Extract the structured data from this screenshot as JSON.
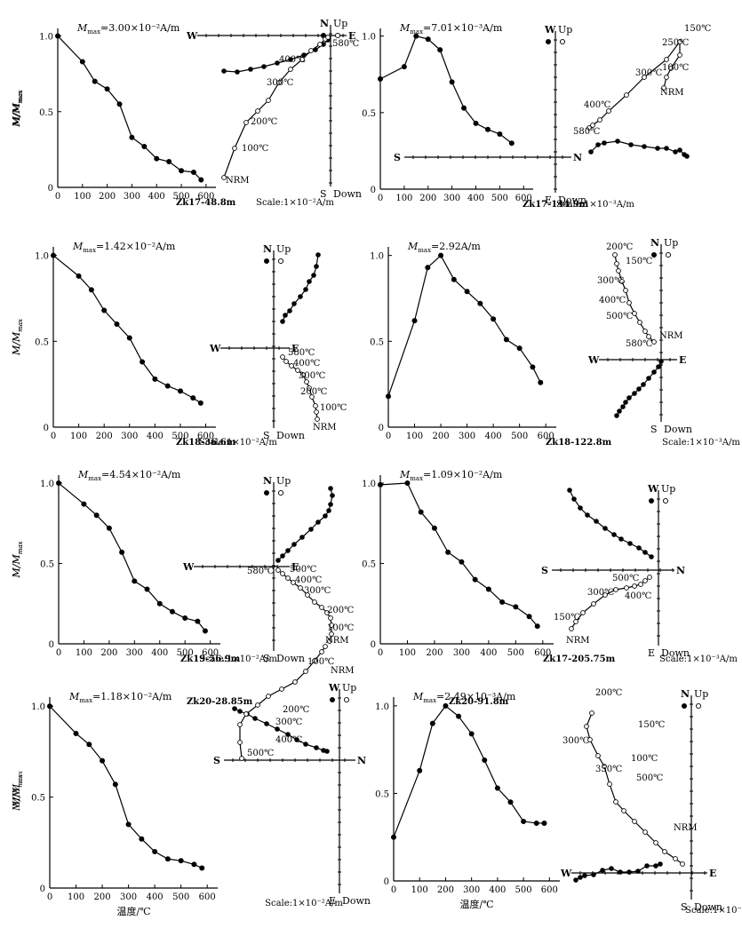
{
  "figure": {
    "ylabel": "M/M max",
    "ylabel_main": "M/M",
    "ylabel_sub": "max",
    "xlabel": "温度/℃"
  },
  "chart_data": [
    {
      "type": "line",
      "sample": "Zk17-48.8m",
      "mmax": "=3.00×10⁻²A/m",
      "x": [
        0,
        100,
        150,
        200,
        250,
        300,
        350,
        400,
        450,
        500,
        550,
        580
      ],
      "y": [
        1.0,
        0.83,
        0.7,
        0.65,
        0.55,
        0.33,
        0.27,
        0.19,
        0.17,
        0.11,
        0.1,
        0.05
      ],
      "xlim": [
        0,
        640
      ],
      "ylim": [
        0,
        1.05
      ],
      "xticks": [
        "0",
        "100",
        "200",
        "300",
        "400",
        "500",
        "600"
      ],
      "yticks": [
        "0",
        "0.5",
        "1.0"
      ],
      "zij": {
        "axes": {
          "top": "N",
          "top2": "Up",
          "left": "W",
          "right": "E",
          "bottom": "S",
          "bottom2": "Down"
        },
        "scale": "Scale:1×10⁻²A/m",
        "steps": [
          "NRM",
          "100℃",
          "200℃",
          "300℃",
          "400℃",
          "580℃"
        ]
      }
    },
    {
      "type": "line",
      "sample": "Zk17-144.9m",
      "mmax": "=7.01×10⁻³A/m",
      "x": [
        0,
        100,
        150,
        200,
        250,
        300,
        350,
        400,
        450,
        500,
        550
      ],
      "y": [
        0.72,
        0.8,
        1.0,
        0.98,
        0.91,
        0.7,
        0.53,
        0.43,
        0.39,
        0.36,
        0.3
      ],
      "xlim": [
        0,
        640
      ],
      "ylim": [
        0,
        1.05
      ],
      "xticks": [
        "0",
        "100",
        "200",
        "300",
        "400",
        "500",
        "600"
      ],
      "yticks": [
        "0",
        "0.5",
        "1.0"
      ],
      "zij": {
        "axes": {
          "top": "W",
          "top2": "Up",
          "left": "S",
          "right": "N",
          "bottom": "E",
          "bottom2": "Down"
        },
        "scale": "Scale:1×10⁻³A/m",
        "steps": [
          "150℃",
          "250℃",
          "100℃",
          "300℃",
          "NRM",
          "400℃",
          "580℃"
        ]
      }
    },
    {
      "type": "line",
      "sample": "Zk18-36.6m",
      "mmax": "=1.42×10⁻²A/m",
      "x": [
        0,
        100,
        150,
        200,
        250,
        300,
        350,
        400,
        450,
        500,
        550,
        580
      ],
      "y": [
        1.0,
        0.88,
        0.8,
        0.68,
        0.6,
        0.52,
        0.38,
        0.28,
        0.24,
        0.21,
        0.17,
        0.14
      ],
      "xlim": [
        0,
        640
      ],
      "ylim": [
        0,
        1.05
      ],
      "xticks": [
        "0",
        "100",
        "200",
        "300",
        "400",
        "500",
        "600"
      ],
      "yticks": [
        "0",
        "0.5",
        "1.0"
      ],
      "zij": {
        "axes": {
          "top": "N",
          "top2": "Up",
          "left": "W",
          "right": "E",
          "bottom": "S",
          "bottom2": "Down"
        },
        "scale": "Scale:1×10⁻²A/m",
        "steps": [
          "580℃",
          "400℃",
          "300℃",
          "200℃",
          "100℃",
          "NRM"
        ]
      }
    },
    {
      "type": "line",
      "sample": "Zk18-122.8m",
      "mmax": "=2.92A/m",
      "x": [
        0,
        100,
        150,
        200,
        250,
        300,
        350,
        400,
        450,
        500,
        550,
        580
      ],
      "y": [
        0.18,
        0.62,
        0.93,
        1.0,
        0.86,
        0.79,
        0.72,
        0.63,
        0.51,
        0.46,
        0.35,
        0.26
      ],
      "xlim": [
        0,
        640
      ],
      "ylim": [
        0,
        1.05
      ],
      "xticks": [
        "0",
        "100",
        "200",
        "300",
        "400",
        "500",
        "600"
      ],
      "yticks": [
        "0",
        "0.5",
        "1.0"
      ],
      "zij": {
        "axes": {
          "top": "N",
          "top2": "Up",
          "left": "W",
          "right": "E",
          "bottom": "S",
          "bottom2": "Down"
        },
        "scale": "Scale:1×10⁻³A/m",
        "steps": [
          "200℃",
          "150℃",
          "300℃",
          "400℃",
          "500℃",
          "NRM",
          "580℃"
        ]
      }
    },
    {
      "type": "line",
      "sample": "Zk19-56.9m",
      "mmax": "=4.54×10⁻²A/m",
      "x": [
        0,
        100,
        150,
        200,
        250,
        300,
        350,
        400,
        450,
        500,
        550,
        580
      ],
      "y": [
        1.0,
        0.87,
        0.8,
        0.72,
        0.57,
        0.39,
        0.34,
        0.25,
        0.2,
        0.16,
        0.14,
        0.08
      ],
      "xlim": [
        0,
        640
      ],
      "ylim": [
        0,
        1.05
      ],
      "xticks": [
        "0",
        "100",
        "200",
        "300",
        "400",
        "500",
        "600"
      ],
      "yticks": [
        "0",
        "0.5",
        "1.0"
      ],
      "zij": {
        "axes": {
          "top": "N",
          "top2": "Up",
          "left": "W",
          "right": "E",
          "bottom": "S",
          "bottom2": "Down"
        },
        "scale": "Scale:1×10⁻²A/m",
        "steps": [
          "580℃",
          "500℃",
          "400℃",
          "300℃",
          "200℃",
          "100℃",
          "NRM"
        ]
      }
    },
    {
      "type": "line",
      "sample": "Zk17-205.75m",
      "mmax": "=1.09×10⁻²A/m",
      "x": [
        0,
        100,
        150,
        200,
        250,
        300,
        350,
        400,
        450,
        500,
        550,
        580
      ],
      "y": [
        0.99,
        1.0,
        0.82,
        0.72,
        0.57,
        0.51,
        0.4,
        0.34,
        0.26,
        0.23,
        0.17,
        0.11
      ],
      "xlim": [
        0,
        640
      ],
      "ylim": [
        0,
        1.05
      ],
      "xticks": [
        "0",
        "100",
        "200",
        "300",
        "400",
        "500",
        "600"
      ],
      "yticks": [
        "0",
        "0.5",
        "1.0"
      ],
      "zij": {
        "axes": {
          "top": "W",
          "top2": "Up",
          "left": "S",
          "right": "N",
          "bottom": "E",
          "bottom2": "Down"
        },
        "scale": "Scale:1×10⁻³A/m",
        "steps": [
          "500℃",
          "300℃",
          "400℃",
          "150℃",
          "NRM"
        ]
      }
    },
    {
      "type": "line",
      "sample": "Zk20-28.85m",
      "mmax": "=1.18×10⁻²A/m",
      "x": [
        0,
        100,
        150,
        200,
        250,
        300,
        350,
        400,
        450,
        500,
        550,
        580
      ],
      "y": [
        1.0,
        0.85,
        0.79,
        0.7,
        0.57,
        0.35,
        0.27,
        0.2,
        0.16,
        0.15,
        0.13,
        0.11
      ],
      "xlim": [
        0,
        640
      ],
      "ylim": [
        0,
        1.05
      ],
      "xticks": [
        "0",
        "100",
        "200",
        "300",
        "400",
        "500",
        "600"
      ],
      "yticks": [
        "0",
        "0.5",
        "1.0"
      ],
      "zij": {
        "axes": {
          "top": "W",
          "top2": "Up",
          "left": "S",
          "right": "N",
          "bottom": "E",
          "bottom2": "Down"
        },
        "scale": "Scale:1×10⁻²A/m",
        "steps": [
          "500℃",
          "400℃",
          "300℃",
          "200℃",
          "100℃",
          "NRM"
        ]
      }
    },
    {
      "type": "line",
      "sample": "Zk20-91.8m",
      "mmax": "=2.49×10⁻³A/m",
      "x": [
        0,
        100,
        150,
        200,
        250,
        300,
        350,
        400,
        450,
        500,
        550,
        580
      ],
      "y": [
        0.25,
        0.63,
        0.9,
        1.0,
        0.94,
        0.84,
        0.69,
        0.53,
        0.45,
        0.34,
        0.33,
        0.33
      ],
      "xlim": [
        0,
        640
      ],
      "ylim": [
        0,
        1.05
      ],
      "xticks": [
        "0",
        "100",
        "200",
        "300",
        "400",
        "500",
        "600"
      ],
      "yticks": [
        "0",
        "0.5",
        "1.0"
      ],
      "zij": {
        "axes": {
          "top": "N",
          "top2": "Up",
          "left": "W",
          "right": "E",
          "bottom": "S",
          "bottom2": "Down"
        },
        "scale": "Scale:1×10⁻³A/m",
        "steps": [
          "200℃",
          "150℃",
          "300℃",
          "100℃",
          "350℃",
          "500℃",
          "NRM"
        ]
      }
    }
  ]
}
